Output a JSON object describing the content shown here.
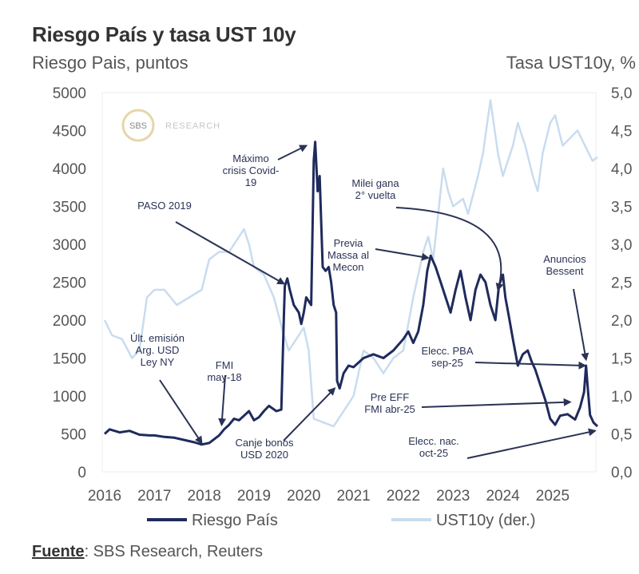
{
  "header": {
    "title": "Riesgo País y tasa UST 10y",
    "left_axis_label": "Riesgo Pais, puntos",
    "right_axis_label": "Tasa UST10y, %"
  },
  "footer": {
    "source_label": "Fuente",
    "source_text": ": SBS Research, Reuters"
  },
  "logo": {
    "mark": "SBS",
    "text": "RESEARCH"
  },
  "chart_data": {
    "type": "line",
    "ylim": [
      0,
      5000
    ],
    "y2lim": [
      0,
      5
    ],
    "xlim": [
      2016,
      2025.9
    ],
    "y_ticks": [
      "0",
      "500",
      "1000",
      "1500",
      "2000",
      "2500",
      "3000",
      "3500",
      "4000",
      "4500",
      "5000"
    ],
    "y2_ticks": [
      "0,0",
      "0,5",
      "1,0",
      "1,5",
      "2,0",
      "2,5",
      "3,0",
      "3,5",
      "4,0",
      "4,5",
      "5,0"
    ],
    "x_ticks": [
      "2016",
      "2017",
      "2018",
      "2019",
      "2020",
      "2021",
      "2022",
      "2023",
      "2024",
      "2025"
    ],
    "legend_position": "bottom",
    "colors": {
      "riesgo": "#1f2b5b",
      "ust": "#c9dcef",
      "annotation": "#2a3355"
    },
    "series": [
      {
        "name": "Riesgo País",
        "axis": "left",
        "points": [
          [
            2016.0,
            500
          ],
          [
            2016.1,
            560
          ],
          [
            2016.3,
            520
          ],
          [
            2016.5,
            540
          ],
          [
            2016.7,
            490
          ],
          [
            2016.9,
            480
          ],
          [
            2017.0,
            480
          ],
          [
            2017.2,
            460
          ],
          [
            2017.4,
            450
          ],
          [
            2017.6,
            420
          ],
          [
            2017.8,
            390
          ],
          [
            2017.95,
            360
          ],
          [
            2018.1,
            380
          ],
          [
            2018.3,
            480
          ],
          [
            2018.4,
            560
          ],
          [
            2018.5,
            620
          ],
          [
            2018.6,
            700
          ],
          [
            2018.7,
            680
          ],
          [
            2018.8,
            740
          ],
          [
            2018.9,
            800
          ],
          [
            2019.0,
            680
          ],
          [
            2019.1,
            720
          ],
          [
            2019.2,
            800
          ],
          [
            2019.3,
            870
          ],
          [
            2019.45,
            800
          ],
          [
            2019.55,
            820
          ],
          [
            2019.6,
            2050
          ],
          [
            2019.62,
            2450
          ],
          [
            2019.67,
            2550
          ],
          [
            2019.72,
            2400
          ],
          [
            2019.8,
            2200
          ],
          [
            2019.9,
            2100
          ],
          [
            2019.95,
            1950
          ],
          [
            2020.0,
            2100
          ],
          [
            2020.05,
            2300
          ],
          [
            2020.15,
            2200
          ],
          [
            2020.2,
            4100
          ],
          [
            2020.23,
            4350
          ],
          [
            2020.28,
            3700
          ],
          [
            2020.32,
            3900
          ],
          [
            2020.38,
            2700
          ],
          [
            2020.44,
            2650
          ],
          [
            2020.5,
            2700
          ],
          [
            2020.55,
            2500
          ],
          [
            2020.6,
            2200
          ],
          [
            2020.65,
            2100
          ],
          [
            2020.67,
            1200
          ],
          [
            2020.72,
            1100
          ],
          [
            2020.8,
            1300
          ],
          [
            2020.9,
            1400
          ],
          [
            2021.0,
            1380
          ],
          [
            2021.2,
            1500
          ],
          [
            2021.4,
            1550
          ],
          [
            2021.6,
            1500
          ],
          [
            2021.8,
            1600
          ],
          [
            2022.0,
            1750
          ],
          [
            2022.1,
            1850
          ],
          [
            2022.2,
            1700
          ],
          [
            2022.3,
            1850
          ],
          [
            2022.4,
            2200
          ],
          [
            2022.48,
            2650
          ],
          [
            2022.55,
            2850
          ],
          [
            2022.65,
            2700
          ],
          [
            2022.75,
            2500
          ],
          [
            2022.85,
            2300
          ],
          [
            2022.95,
            2100
          ],
          [
            2023.05,
            2400
          ],
          [
            2023.15,
            2650
          ],
          [
            2023.25,
            2300
          ],
          [
            2023.35,
            2000
          ],
          [
            2023.45,
            2400
          ],
          [
            2023.55,
            2600
          ],
          [
            2023.65,
            2500
          ],
          [
            2023.75,
            2200
          ],
          [
            2023.85,
            2000
          ],
          [
            2023.92,
            2450
          ],
          [
            2024.0,
            2600
          ],
          [
            2024.05,
            2300
          ],
          [
            2024.12,
            2050
          ],
          [
            2024.2,
            1750
          ],
          [
            2024.3,
            1400
          ],
          [
            2024.4,
            1550
          ],
          [
            2024.5,
            1600
          ],
          [
            2024.58,
            1450
          ],
          [
            2024.65,
            1350
          ],
          [
            2024.75,
            1150
          ],
          [
            2024.85,
            950
          ],
          [
            2024.95,
            700
          ],
          [
            2025.05,
            620
          ],
          [
            2025.15,
            740
          ],
          [
            2025.3,
            760
          ],
          [
            2025.45,
            690
          ],
          [
            2025.55,
            850
          ],
          [
            2025.63,
            1050
          ],
          [
            2025.67,
            1400
          ],
          [
            2025.7,
            1150
          ],
          [
            2025.75,
            750
          ],
          [
            2025.82,
            650
          ],
          [
            2025.9,
            600
          ]
        ]
      },
      {
        "name": "UST10y (der.)",
        "axis": "right",
        "points": [
          [
            2016.0,
            2.0
          ],
          [
            2016.15,
            1.8
          ],
          [
            2016.35,
            1.75
          ],
          [
            2016.55,
            1.5
          ],
          [
            2016.7,
            1.6
          ],
          [
            2016.85,
            2.3
          ],
          [
            2017.0,
            2.4
          ],
          [
            2017.2,
            2.4
          ],
          [
            2017.45,
            2.2
          ],
          [
            2017.7,
            2.3
          ],
          [
            2017.95,
            2.4
          ],
          [
            2018.1,
            2.8
          ],
          [
            2018.3,
            2.9
          ],
          [
            2018.5,
            2.9
          ],
          [
            2018.8,
            3.2
          ],
          [
            2018.9,
            3.0
          ],
          [
            2019.0,
            2.7
          ],
          [
            2019.2,
            2.6
          ],
          [
            2019.4,
            2.3
          ],
          [
            2019.6,
            1.8
          ],
          [
            2019.7,
            1.6
          ],
          [
            2019.9,
            1.8
          ],
          [
            2020.0,
            1.9
          ],
          [
            2020.1,
            1.6
          ],
          [
            2020.2,
            0.7
          ],
          [
            2020.4,
            0.65
          ],
          [
            2020.6,
            0.6
          ],
          [
            2020.8,
            0.8
          ],
          [
            2021.0,
            1.0
          ],
          [
            2021.2,
            1.6
          ],
          [
            2021.4,
            1.5
          ],
          [
            2021.6,
            1.3
          ],
          [
            2021.8,
            1.5
          ],
          [
            2022.0,
            1.6
          ],
          [
            2022.2,
            2.3
          ],
          [
            2022.4,
            2.9
          ],
          [
            2022.5,
            3.1
          ],
          [
            2022.6,
            2.8
          ],
          [
            2022.8,
            4.0
          ],
          [
            2022.9,
            3.7
          ],
          [
            2023.0,
            3.5
          ],
          [
            2023.2,
            3.6
          ],
          [
            2023.3,
            3.4
          ],
          [
            2023.5,
            3.9
          ],
          [
            2023.6,
            4.2
          ],
          [
            2023.75,
            4.9
          ],
          [
            2023.9,
            4.2
          ],
          [
            2024.0,
            3.9
          ],
          [
            2024.2,
            4.3
          ],
          [
            2024.3,
            4.6
          ],
          [
            2024.45,
            4.3
          ],
          [
            2024.6,
            3.9
          ],
          [
            2024.7,
            3.7
          ],
          [
            2024.8,
            4.2
          ],
          [
            2024.95,
            4.6
          ],
          [
            2025.05,
            4.7
          ],
          [
            2025.2,
            4.3
          ],
          [
            2025.35,
            4.4
          ],
          [
            2025.5,
            4.5
          ],
          [
            2025.65,
            4.3
          ],
          [
            2025.8,
            4.1
          ],
          [
            2025.9,
            4.15
          ]
        ]
      }
    ],
    "annotations": [
      {
        "lines": [
          "Últ. emisión",
          "Arg. USD",
          "Ley NY"
        ],
        "target": [
          2017.95,
          380
        ]
      },
      {
        "lines": [
          "FMI",
          "may-18"
        ],
        "target": [
          2018.35,
          620
        ]
      },
      {
        "lines": [
          "PASO 2019"
        ],
        "target": [
          2019.6,
          2480
        ]
      },
      {
        "lines": [
          "Máximo",
          "crisis Covid-",
          "19"
        ],
        "target": [
          2020.05,
          4300
        ]
      },
      {
        "lines": [
          "Canje bonos",
          "USD 2020"
        ],
        "target": [
          2020.62,
          1100
        ]
      },
      {
        "lines": [
          "Previa",
          "Massa al",
          "Mecon"
        ],
        "target": [
          2022.5,
          2820
        ]
      },
      {
        "lines": [
          "Milei gana",
          "2° vuelta"
        ],
        "target": [
          2023.9,
          2400
        ]
      },
      {
        "lines": [
          "Anuncios",
          "Bessent"
        ],
        "target": [
          2025.67,
          1480
        ]
      },
      {
        "lines": [
          "Elecc. PBA",
          "sep-25"
        ],
        "target": [
          2025.65,
          1400
        ]
      },
      {
        "lines": [
          "Pre EFF",
          "FMI abr-25"
        ],
        "target": [
          2025.35,
          920
        ]
      },
      {
        "lines": [
          "Elecc. nac.",
          "oct-25"
        ],
        "target": [
          2025.85,
          540
        ]
      }
    ]
  }
}
